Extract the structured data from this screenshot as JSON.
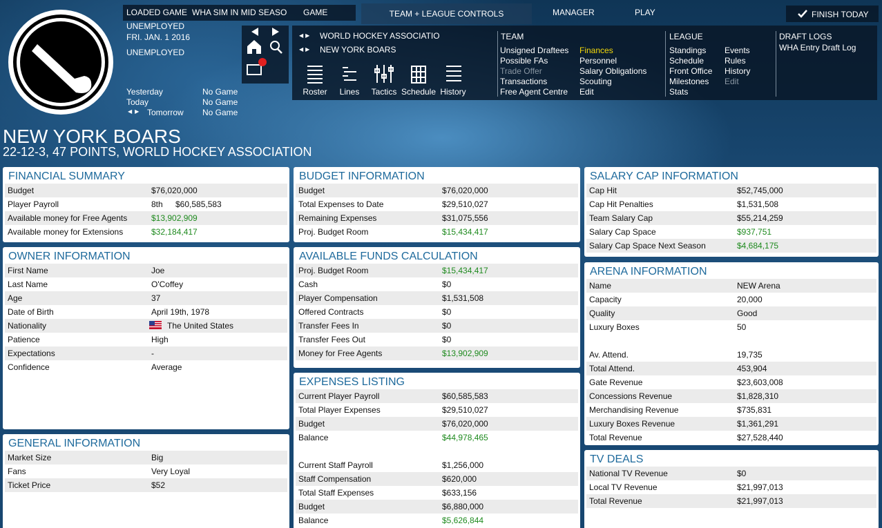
{
  "header": {
    "loaded_label": "LOADED GAME",
    "save_name": "WHA SIM IN MID SEASO",
    "game": "GAME",
    "controls": "TEAM + LEAGUE CONTROLS",
    "manager": "MANAGER",
    "play": "PLAY",
    "finish": "FINISH TODAY"
  },
  "status": {
    "role": "UNEMPLOYED",
    "date": "FRI. JAN. 1 2016",
    "employment": "UNEMPLOYED"
  },
  "schedule": [
    {
      "day": "Yesterday",
      "game": "No Game"
    },
    {
      "day": "Today",
      "game": "No Game"
    },
    {
      "day": "Tomorrow",
      "game": "No Game"
    }
  ],
  "nav": {
    "league": "WORLD HOCKEY ASSOCIATIO",
    "team": "NEW YORK BOARS"
  },
  "toolbar": [
    "Roster",
    "Lines",
    "Tactics",
    "Schedule",
    "History"
  ],
  "menus": [
    {
      "title": "TEAM",
      "columns": [
        [
          "Unsigned Draftees",
          "Possible FAs",
          {
            "label": "Trade Offer",
            "color": "#8a97a3"
          },
          "Transactions",
          "Free Agent Centre"
        ],
        [
          {
            "label": "Finances",
            "color": "#f5d90a"
          },
          "Personnel",
          "Salary Obligations",
          "Scouting",
          "Edit"
        ]
      ]
    },
    {
      "title": "LEAGUE",
      "columns": [
        [
          "Standings",
          "Schedule",
          "Front Office",
          "Milestones",
          "Stats"
        ],
        [
          "Events",
          "Rules",
          "History",
          {
            "label": "Edit",
            "color": "#8a97a3"
          }
        ]
      ]
    },
    {
      "title": "DRAFT LOGS",
      "columns": [
        [
          "WHA Entry Draft Log"
        ]
      ]
    }
  ],
  "team": {
    "name": "NEW YORK BOARS",
    "record": "22-12-3, 47 POINTS, WORLD HOCKEY ASSOCIATION"
  },
  "panels": [
    {
      "title": "FINANCIAL SUMMARY",
      "groups": [
        [
          {
            "label": "Budget",
            "value": "$76,020,000"
          },
          {
            "label": "Player Payroll",
            "rank": "8th",
            "value": "$60,585,583"
          },
          {
            "label": "Available money for Free Agents",
            "value": "$13,902,909",
            "color": "#1e8a1e"
          },
          {
            "label": "Available money for Extensions",
            "value": "$32,184,417",
            "color": "#1e8a1e"
          }
        ]
      ]
    },
    {
      "title": "OWNER INFORMATION",
      "groups": [
        [
          {
            "label": "First Name",
            "value": "Joe"
          },
          {
            "label": "Last Name",
            "value": "O'Coffey"
          },
          {
            "label": "Age",
            "value": "37"
          },
          {
            "label": "Date of Birth",
            "value": "April 19th, 1978"
          },
          {
            "label": "Nationality",
            "value": "The United States"
          },
          {
            "label": "Patience",
            "value": "High"
          },
          {
            "label": "Expectations",
            "value": "-"
          },
          {
            "label": "Confidence",
            "value": "Average"
          }
        ]
      ]
    },
    {
      "title": "GENERAL INFORMATION",
      "groups": [
        [
          {
            "label": "Market Size",
            "value": "Big"
          },
          {
            "label": "Fans",
            "value": "Very Loyal"
          },
          {
            "label": "Ticket Price",
            "value": "$52"
          }
        ]
      ]
    },
    {
      "title": "BUDGET INFORMATION",
      "groups": [
        [
          {
            "label": "Budget",
            "value": "$76,020,000"
          },
          {
            "label": "Total Expenses to Date",
            "value": "$29,510,027"
          },
          {
            "label": "Remaining Expenses",
            "value": "$31,075,556"
          },
          {
            "label": "Proj. Budget Room",
            "value": "$15,434,417",
            "color": "#1e8a1e"
          }
        ]
      ]
    },
    {
      "title": "AVAILABLE FUNDS CALCULATION",
      "groups": [
        [
          {
            "label": "Proj. Budget Room",
            "value": "$15,434,417",
            "color": "#1e8a1e"
          },
          {
            "label": "Cash",
            "value": "$0"
          },
          {
            "label": "Player Compensation",
            "value": "$1,531,508"
          },
          {
            "label": "Offered Contracts",
            "value": "$0"
          },
          {
            "label": "Transfer Fees In",
            "value": "$0"
          },
          {
            "label": "Transfer Fees Out",
            "value": "$0"
          },
          {
            "label": "Money for Free Agents",
            "value": "$13,902,909",
            "color": "#1e8a1e"
          }
        ]
      ]
    },
    {
      "title": "EXPENSES LISTING",
      "groups": [
        [
          {
            "label": "Current Player Payroll",
            "value": "$60,585,583"
          },
          {
            "label": "Total Player Expenses",
            "value": "$29,510,027"
          },
          {
            "label": "Budget",
            "value": "$76,020,000"
          },
          {
            "label": "Balance",
            "value": "$44,978,465",
            "color": "#1e8a1e"
          }
        ],
        [
          {
            "label": "Current Staff Payroll",
            "value": "$1,256,000"
          },
          {
            "label": "Staff Compensation",
            "value": "$620,000"
          },
          {
            "label": "Total Staff Expenses",
            "value": "$633,156"
          },
          {
            "label": "Budget",
            "value": "$6,880,000"
          },
          {
            "label": "Balance",
            "value": "$5,626,844",
            "color": "#1e8a1e"
          }
        ]
      ]
    },
    {
      "title": "SALARY CAP INFORMATION",
      "groups": [
        [
          {
            "label": "Cap Hit",
            "value": "$52,745,000"
          },
          {
            "label": "Cap Hit Penalties",
            "value": "$1,531,508"
          },
          {
            "label": "Team Salary Cap",
            "value": "$55,214,259"
          },
          {
            "label": "Salary Cap Space",
            "value": "$937,751",
            "color": "#1e8a1e"
          },
          {
            "label": "Salary Cap Space Next Season",
            "value": "$4,684,175",
            "color": "#1e8a1e"
          }
        ]
      ]
    },
    {
      "title": "ARENA INFORMATION",
      "groups": [
        [
          {
            "label": "Name",
            "value": "NEW Arena"
          },
          {
            "label": "Capacity",
            "value": "20,000"
          },
          {
            "label": "Quality",
            "value": "Good"
          },
          {
            "label": "Luxury Boxes",
            "value": "50"
          }
        ],
        [
          {
            "label": "Av. Attend.",
            "value": "19,735"
          },
          {
            "label": "Total Attend.",
            "value": "453,904"
          },
          {
            "label": "Gate Revenue",
            "value": "$23,603,008"
          },
          {
            "label": "Concessions Revenue",
            "value": "$1,828,310"
          },
          {
            "label": "Merchandising Revenue",
            "value": "$735,831"
          },
          {
            "label": "Luxury Boxes Revenue",
            "value": "$1,361,291"
          },
          {
            "label": "Total Revenue",
            "value": "$27,528,440"
          }
        ]
      ]
    },
    {
      "title": "TV DEALS",
      "groups": [
        [
          {
            "label": "National TV Revenue",
            "value": "$0"
          },
          {
            "label": "Local TV Revenue",
            "value": "$21,997,013"
          },
          {
            "label": "Total Revenue",
            "value": "$21,997,013"
          }
        ]
      ]
    }
  ]
}
